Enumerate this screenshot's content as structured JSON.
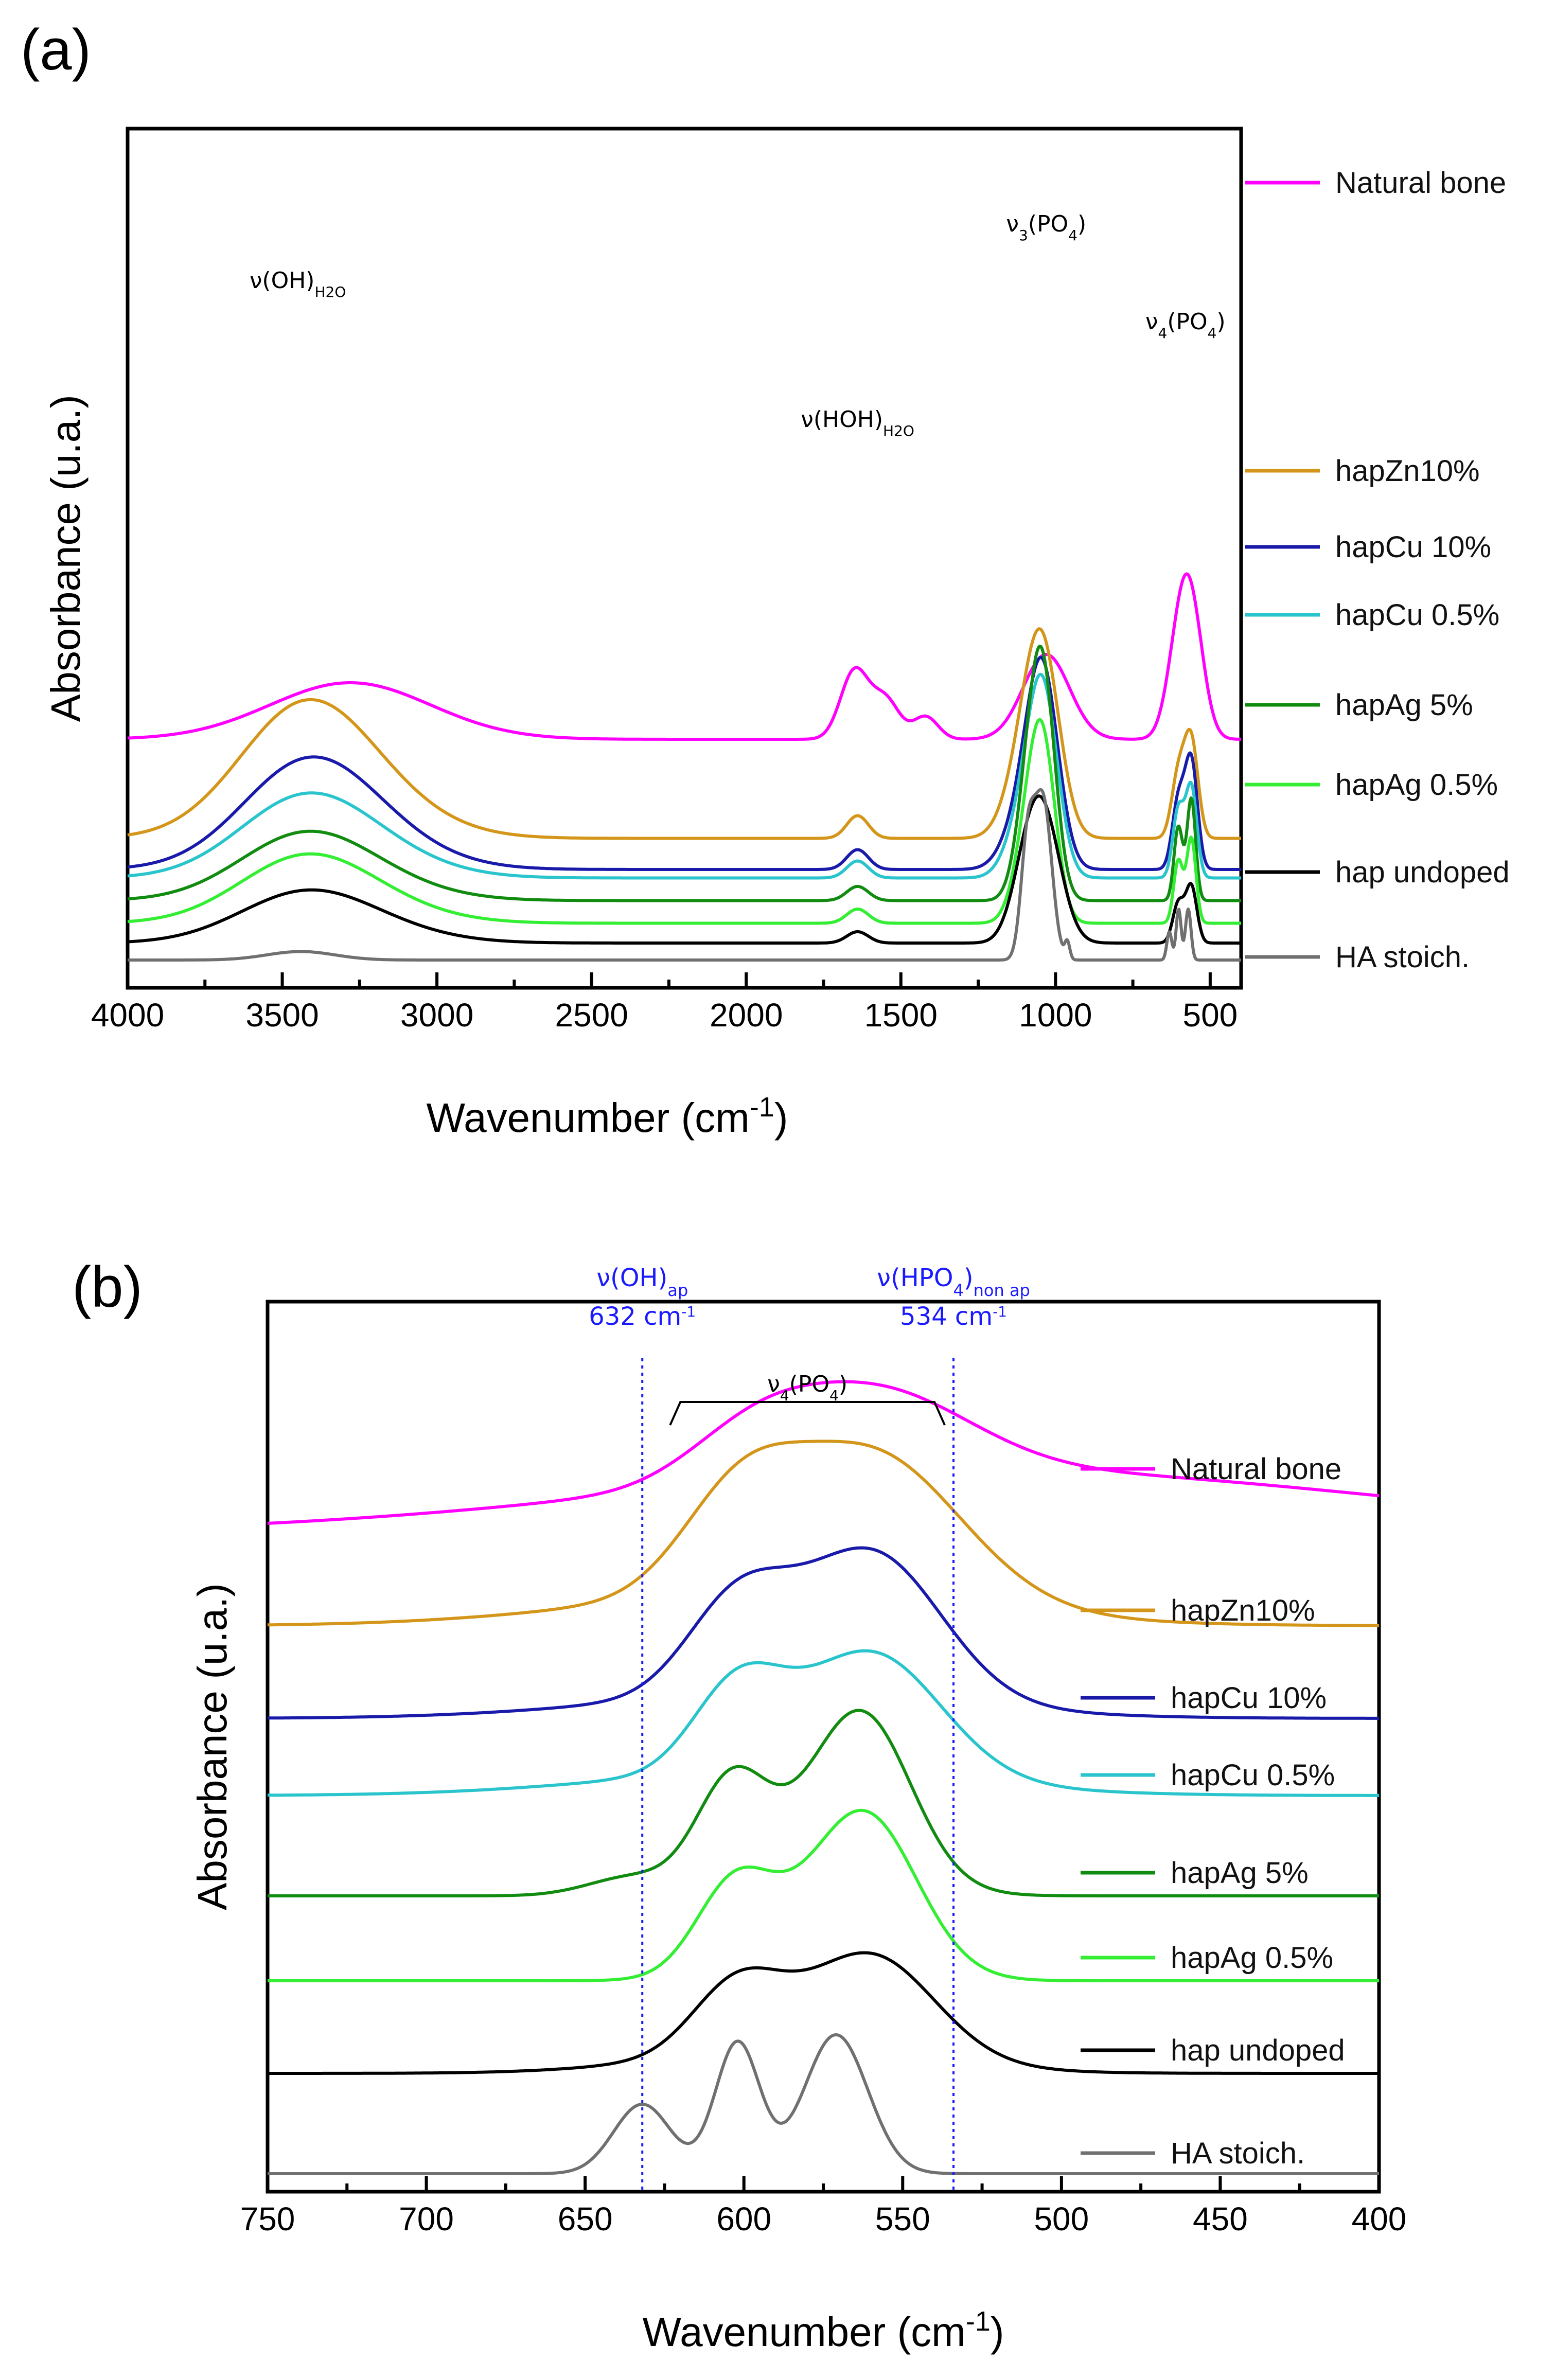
{
  "chart_data": [
    {
      "type": "line",
      "panel_label": "(a)",
      "xlabel": "Wavenumber (cm",
      "xlabel_sup": "-1",
      "xlabel_end": ")",
      "ylabel": "Absorbance (u.a.)",
      "xlim": [
        4000,
        400
      ],
      "x_ticks": [
        4000,
        3500,
        3000,
        2500,
        2000,
        1500,
        1000,
        500
      ],
      "annotations": [
        {
          "text": "ν(OH)",
          "sub": "H2O",
          "x": 3450
        },
        {
          "text": "ν(HOH)",
          "sub": "H2O",
          "x": 1640
        },
        {
          "text": "ν",
          "sub": "3",
          "tail": "(PO",
          "sub2": "4",
          "tail2": ")",
          "x": 1030
        },
        {
          "text": "ν",
          "sub": "4",
          "tail": "(PO",
          "sub2": "4",
          "tail2": ")",
          "x": 580
        }
      ],
      "series": [
        {
          "name": "Natural bone",
          "color": "#ff00ff",
          "baseline": 3.3,
          "peaks": [
            [
              3280,
              1.0,
              260
            ],
            [
              1650,
              1.2,
              45
            ],
            [
              1550,
              0.7,
              45
            ],
            [
              1420,
              0.4,
              40
            ],
            [
              1030,
              1.5,
              75
            ],
            [
              600,
              1.4,
              40
            ],
            [
              560,
              1.9,
              40
            ]
          ]
        },
        {
          "name": "hapZn10%",
          "color": "#d4961a",
          "baseline": 1.55,
          "peaks": [
            [
              3440,
              2.0,
              210
            ],
            [
              3250,
              0.6,
              230
            ],
            [
              1640,
              0.4,
              35
            ],
            [
              1040,
              2.9,
              55
            ],
            [
              1100,
              1.2,
              60
            ],
            [
              603,
              1.1,
              22
            ],
            [
              561,
              1.7,
              22
            ]
          ]
        },
        {
          "name": "hapCu 10%",
          "color": "#1a1aaa",
          "baseline": 1.0,
          "peaks": [
            [
              3430,
              1.6,
              210
            ],
            [
              3250,
              0.5,
              230
            ],
            [
              1640,
              0.35,
              35
            ],
            [
              1040,
              3.1,
              50
            ],
            [
              1100,
              1.0,
              60
            ],
            [
              603,
              1.2,
              20
            ],
            [
              561,
              1.9,
              20
            ]
          ]
        },
        {
          "name": "hapCu 0.5%",
          "color": "#29c4cc",
          "baseline": 0.85,
          "peaks": [
            [
              3440,
              1.2,
              210
            ],
            [
              3250,
              0.4,
              230
            ],
            [
              1640,
              0.3,
              35
            ],
            [
              1040,
              3.0,
              48
            ],
            [
              1100,
              1.0,
              55
            ],
            [
              603,
              1.2,
              18
            ],
            [
              561,
              1.6,
              18
            ]
          ]
        },
        {
          "name": "hapAg 5%",
          "color": "#118c11",
          "baseline": 0.45,
          "peaks": [
            [
              3440,
              1.0,
              210
            ],
            [
              3250,
              0.3,
              230
            ],
            [
              1640,
              0.25,
              35
            ],
            [
              1040,
              3.7,
              40
            ],
            [
              1090,
              1.5,
              40
            ],
            [
              603,
              1.3,
              14
            ],
            [
              561,
              1.8,
              14
            ]
          ]
        },
        {
          "name": "hapAg 0.5%",
          "color": "#33ee33",
          "baseline": 0.05,
          "peaks": [
            [
              3440,
              1.0,
              210
            ],
            [
              3250,
              0.3,
              230
            ],
            [
              1640,
              0.25,
              35
            ],
            [
              1040,
              2.8,
              42
            ],
            [
              1090,
              1.3,
              45
            ],
            [
              603,
              1.1,
              15
            ],
            [
              561,
              1.5,
              15
            ]
          ]
        },
        {
          "name": "hap undoped",
          "color": "#000000",
          "baseline": -0.3,
          "peaks": [
            [
              3440,
              0.75,
              210
            ],
            [
              3250,
              0.25,
              230
            ],
            [
              1640,
              0.2,
              35
            ],
            [
              1035,
              2.0,
              55
            ],
            [
              1095,
              1.0,
              50
            ],
            [
              603,
              0.7,
              18
            ],
            [
              561,
              1.0,
              18
            ]
          ]
        },
        {
          "name": "HA stoich.",
          "color": "#707070",
          "baseline": -0.6,
          "peaks": [
            [
              3440,
              0.15,
              110
            ],
            [
              1090,
              2.0,
              22
            ],
            [
              1040,
              2.8,
              28
            ],
            [
              962,
              0.3,
              8
            ],
            [
              632,
              0.5,
              8
            ],
            [
              602,
              0.9,
              8
            ],
            [
              571,
              0.9,
              9
            ]
          ]
        }
      ]
    },
    {
      "type": "line",
      "panel_label": "(b)",
      "xlabel": "Wavenumber (cm",
      "xlabel_sup": "-1",
      "xlabel_end": ")",
      "ylabel": "Absorbance (u.a.)",
      "xlim": [
        750,
        400
      ],
      "x_ticks": [
        750,
        700,
        650,
        600,
        550,
        500,
        450,
        400
      ],
      "annotations": [
        {
          "text": "ν(OH)",
          "sub": "ap",
          "value_label": "632 cm",
          "value_sup": "-1",
          "x": 632
        },
        {
          "text": "ν(HPO",
          "sub": "4",
          "tail": ")",
          "sub2": "non ap",
          "value_label": "534 cm",
          "value_sup": "-1",
          "x": 534
        },
        {
          "text": "ν",
          "sub": "4",
          "tail": "(PO",
          "sub2": "4",
          "tail2": ")",
          "bracket": [
            620,
            540
          ]
        }
      ],
      "series": [
        {
          "name": "Natural bone",
          "color": "#ff00ff",
          "baseline": 4.2,
          "peaks": [
            [
              598,
              0.25,
              20
            ],
            [
              560,
              0.55,
              30
            ],
            [
              520,
              0.4,
              120
            ]
          ]
        },
        {
          "name": "hapZn10%",
          "color": "#d4961a",
          "baseline": 3.6,
          "peaks": [
            [
              602,
              0.55,
              18
            ],
            [
              560,
              0.95,
              28
            ],
            [
              590,
              0.2,
              60
            ]
          ]
        },
        {
          "name": "hapCu 10%",
          "color": "#1a1aaa",
          "baseline": 3.0,
          "peaks": [
            [
              602,
              0.6,
              16
            ],
            [
              560,
              0.95,
              22
            ],
            [
              590,
              0.15,
              55
            ]
          ]
        },
        {
          "name": "hapCu 0.5%",
          "color": "#29c4cc",
          "baseline": 2.5,
          "peaks": [
            [
              602,
              0.55,
              14
            ],
            [
              560,
              0.8,
              22
            ],
            [
              590,
              0.15,
              55
            ]
          ]
        },
        {
          "name": "hapAg 5%",
          "color": "#118c11",
          "baseline": 1.85,
          "peaks": [
            [
              604,
              0.65,
              11
            ],
            [
              562,
              0.9,
              15
            ],
            [
              575,
              0.35,
              22
            ],
            [
              635,
              0.12,
              14
            ]
          ]
        },
        {
          "name": "hapAg 0.5%",
          "color": "#33ee33",
          "baseline": 1.3,
          "peaks": [
            [
              603,
              0.55,
              12
            ],
            [
              561,
              0.85,
              16
            ],
            [
              575,
              0.3,
              22
            ]
          ]
        },
        {
          "name": "hap undoped",
          "color": "#000000",
          "baseline": 0.7,
          "peaks": [
            [
              602,
              0.45,
              14
            ],
            [
              560,
              0.65,
              20
            ],
            [
              585,
              0.15,
              40
            ]
          ]
        },
        {
          "name": "HA stoich.",
          "color": "#707070",
          "baseline": 0.05,
          "peaks": [
            [
              632,
              0.45,
              9
            ],
            [
              602,
              0.85,
              7
            ],
            [
              571,
              0.9,
              10
            ]
          ]
        }
      ]
    }
  ]
}
